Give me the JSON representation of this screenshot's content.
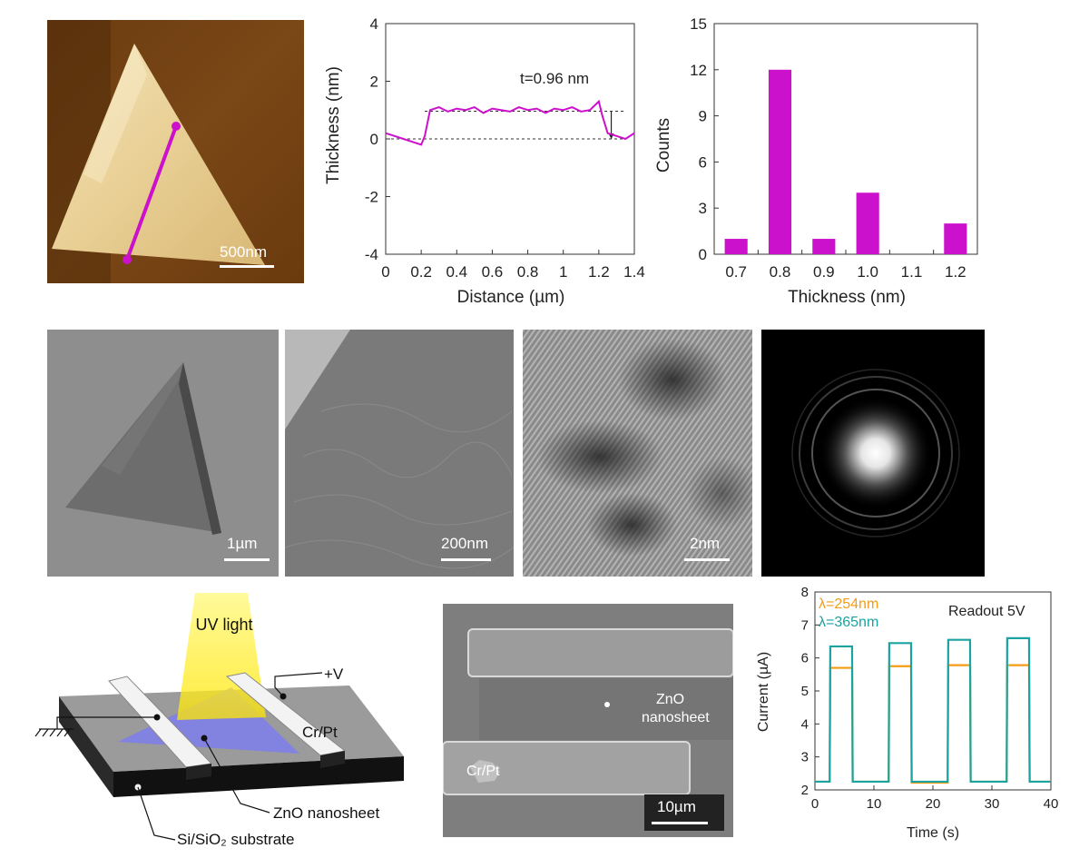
{
  "afm": {
    "scale_label": "500nm"
  },
  "tem": {
    "panels": [
      {
        "scale_label": "1µm"
      },
      {
        "scale_label": "200nm"
      },
      {
        "scale_label": "2nm"
      }
    ]
  },
  "device_schematic": {
    "uv_label": "UV light",
    "plus_v_label": "+V",
    "electrode_label": "Cr/Pt",
    "nanosheet_label": "ZnO nanosheet",
    "substrate_label": "Si/SiO₂ substrate"
  },
  "sem": {
    "nanosheet_label_line1": "ZnO",
    "nanosheet_label_line2": "nanosheet",
    "electrode_label": "Cr/Pt",
    "scale_label": "10µm"
  },
  "colors": {
    "profile": "#cc11cc",
    "bar": "#cc11cc",
    "uv254": "#f59b14",
    "uv365": "#1aa3a0"
  },
  "chart_data": [
    {
      "type": "line",
      "xlabel": "Distance (µm)",
      "ylabel": "Thickness (nm)",
      "xlim": [
        0,
        1.4
      ],
      "ylim": [
        -4,
        4
      ],
      "xticks": [
        "0",
        "0.2",
        "0.4",
        "0.6",
        "0.8",
        "1",
        "1.2",
        "1.4"
      ],
      "yticks": [
        "-4",
        "-2",
        "0",
        "2",
        "4"
      ],
      "annotation": "t=0.96 nm",
      "reference_levels": [
        0,
        0.96
      ],
      "series": [
        {
          "x": [
            0,
            0.05,
            0.1,
            0.15,
            0.2,
            0.22,
            0.25,
            0.3,
            0.35,
            0.4,
            0.45,
            0.5,
            0.55,
            0.6,
            0.65,
            0.7,
            0.75,
            0.8,
            0.85,
            0.9,
            0.95,
            1.0,
            1.05,
            1.1,
            1.15,
            1.2,
            1.22,
            1.25,
            1.3,
            1.35,
            1.4
          ],
          "y": [
            0.2,
            0.1,
            0.0,
            -0.1,
            -0.2,
            0.1,
            1.0,
            1.1,
            0.95,
            1.05,
            1.0,
            1.1,
            0.9,
            1.05,
            1.0,
            0.95,
            1.1,
            1.0,
            1.05,
            0.9,
            1.05,
            1.0,
            1.1,
            0.95,
            1.0,
            1.3,
            0.8,
            0.2,
            0.1,
            0.0,
            0.2
          ]
        }
      ]
    },
    {
      "type": "bar",
      "xlabel": "Thickness (nm)",
      "ylabel": "Counts",
      "categories": [
        "0.7",
        "0.8",
        "0.9",
        "1.0",
        "1.1",
        "1.2"
      ],
      "values": [
        1,
        12,
        1,
        4,
        0,
        2
      ],
      "ylim": [
        0,
        15
      ],
      "yticks": [
        "0",
        "3",
        "6",
        "9",
        "12",
        "15"
      ]
    },
    {
      "type": "line",
      "xlabel": "Time (s)",
      "ylabel": "Current (µA)",
      "xlim": [
        0,
        40
      ],
      "ylim": [
        2,
        8
      ],
      "xticks": [
        "0",
        "10",
        "20",
        "30",
        "40"
      ],
      "yticks": [
        "2",
        "3",
        "4",
        "5",
        "6",
        "7",
        "8"
      ],
      "annotation": "Readout 5V",
      "series": [
        {
          "name": "λ=254nm",
          "x": [
            0,
            2.5,
            2.6,
            6.3,
            6.4,
            12.5,
            12.6,
            16.3,
            16.4,
            22.5,
            22.6,
            26.3,
            26.4,
            32.5,
            32.6,
            36.3,
            36.4,
            40
          ],
          "y": [
            2.25,
            2.25,
            5.7,
            5.7,
            2.25,
            2.25,
            5.75,
            5.75,
            2.22,
            2.22,
            5.78,
            5.78,
            2.25,
            2.25,
            5.78,
            5.78,
            2.25,
            2.25
          ]
        },
        {
          "name": "λ=365nm",
          "x": [
            0,
            2.5,
            2.6,
            6.3,
            6.4,
            12.5,
            12.6,
            16.3,
            16.4,
            22.5,
            22.6,
            26.3,
            26.4,
            32.5,
            32.6,
            36.3,
            36.4,
            40
          ],
          "y": [
            2.25,
            2.25,
            6.35,
            6.35,
            2.25,
            2.25,
            6.45,
            6.45,
            2.25,
            2.25,
            6.55,
            6.55,
            2.25,
            2.25,
            6.6,
            6.6,
            2.25,
            2.25
          ]
        }
      ]
    }
  ]
}
